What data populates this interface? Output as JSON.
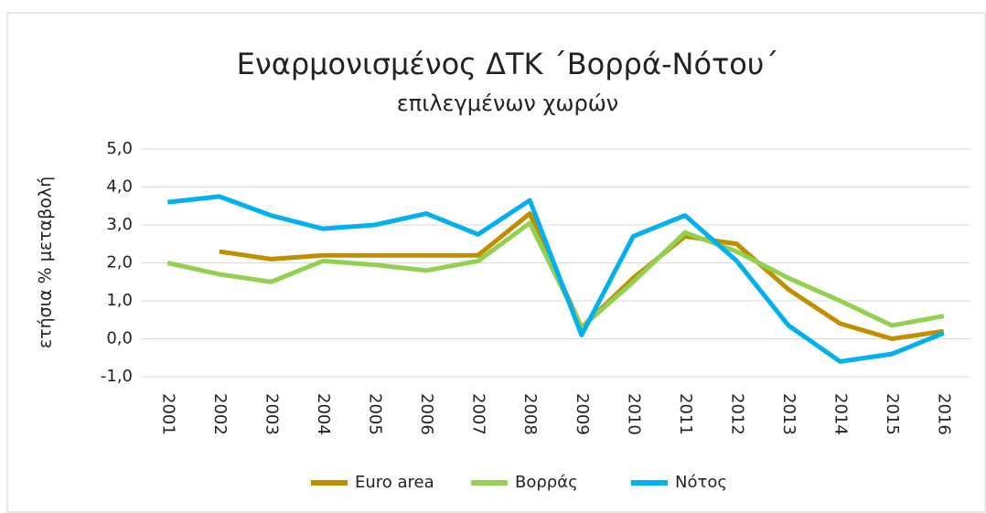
{
  "chart_data": {
    "type": "line",
    "title": "Εναρμονισμένος ΔΤΚ ΄Βορρά-Νότου΄",
    "subtitle": "επιλεγμένων χωρών",
    "y_label": "ετήσια % μεταβολή",
    "categories": [
      "2001",
      "2002",
      "2003",
      "2004",
      "2005",
      "2006",
      "2007",
      "2008",
      "2009",
      "2010",
      "2011",
      "2012",
      "2013",
      "2014",
      "2015",
      "2016"
    ],
    "series": [
      {
        "name": "Euro area",
        "color": "#bf8f00",
        "values": [
          null,
          2.3,
          2.1,
          2.2,
          2.2,
          2.2,
          2.2,
          3.3,
          0.3,
          1.6,
          2.7,
          2.5,
          1.3,
          0.4,
          0.0,
          0.2
        ]
      },
      {
        "name": "Βορράς",
        "color": "#92d050",
        "values": [
          2.0,
          1.7,
          1.5,
          2.05,
          1.95,
          1.8,
          2.05,
          3.05,
          0.3,
          1.5,
          2.8,
          2.3,
          1.6,
          1.0,
          0.35,
          0.6
        ]
      },
      {
        "name": "Νότος",
        "color": "#00b0f0",
        "values": [
          3.6,
          3.75,
          3.25,
          2.9,
          3.0,
          3.3,
          2.75,
          3.65,
          0.1,
          2.7,
          3.25,
          2.05,
          0.35,
          -0.6,
          -0.4,
          0.15
        ]
      }
    ],
    "ylim": [
      -1,
      5
    ],
    "yticks": [
      {
        "value": -1,
        "label": "-1,0"
      },
      {
        "value": 0,
        "label": "0,0"
      },
      {
        "value": 1,
        "label": "1,0"
      },
      {
        "value": 2,
        "label": "2,0"
      },
      {
        "value": 3,
        "label": "3,0"
      },
      {
        "value": 4,
        "label": "4,0"
      },
      {
        "value": 5,
        "label": "5,0"
      }
    ],
    "grid": true,
    "legend": "bottom"
  }
}
